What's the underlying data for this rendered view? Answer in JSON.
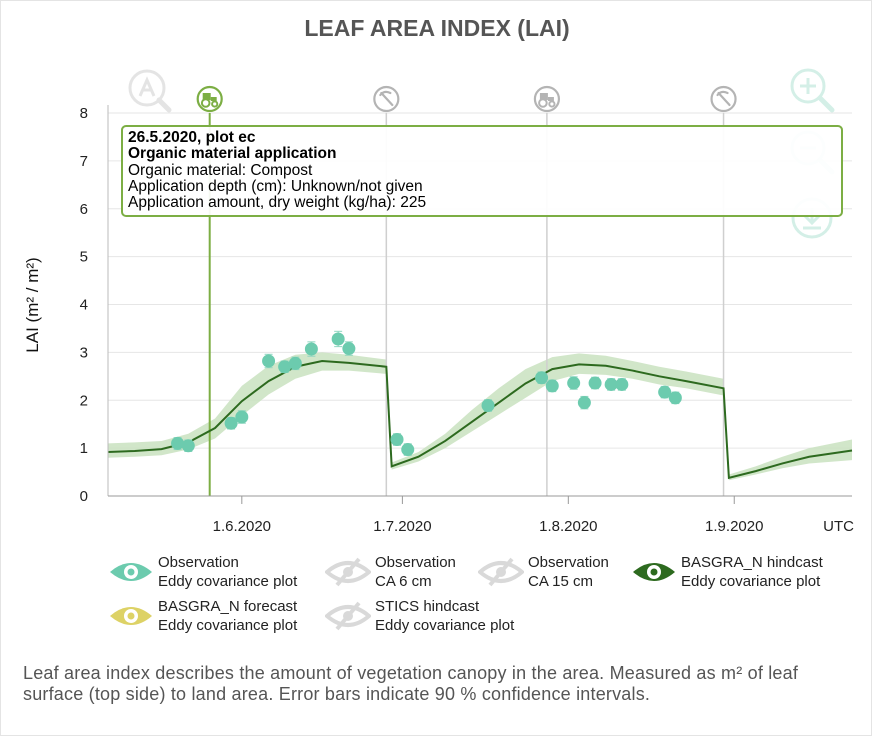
{
  "chart_data": {
    "type": "line",
    "title": "LEAF AREA INDEX (LAI)",
    "ylabel": "LAI (m² / m²)",
    "xlabel": "",
    "ylim": [
      0,
      8
    ],
    "yticks": [
      "0",
      "1",
      "2",
      "3",
      "4",
      "5",
      "6",
      "7",
      "8"
    ],
    "xlim": [
      "2020-05-07",
      "2020-09-23"
    ],
    "xticks": [
      {
        "date": "2020-06-01",
        "label": "1.6.2020"
      },
      {
        "date": "2020-07-01",
        "label": "1.7.2020"
      },
      {
        "date": "2020-08-01",
        "label": "1.8.2020"
      },
      {
        "date": "2020-09-01",
        "label": "1.9.2020"
      }
    ],
    "timezone_label": "UTC",
    "events": [
      {
        "date": "2020-05-26",
        "icon": "tractor-icon",
        "highlighted": true
      },
      {
        "date": "2020-06-28",
        "icon": "mowing-icon",
        "highlighted": false
      },
      {
        "date": "2020-07-28",
        "icon": "tractor-icon",
        "highlighted": false
      },
      {
        "date": "2020-08-30",
        "icon": "mowing-icon",
        "highlighted": false
      }
    ],
    "series": [
      {
        "name": "Observation Eddy covariance plot",
        "kind": "observation",
        "color": "#6ccbae",
        "points": [
          {
            "x": "2020-05-20",
            "y": 1.1,
            "lo": 0.97,
            "hi": 1.22
          },
          {
            "x": "2020-05-22",
            "y": 1.05,
            "lo": 0.93,
            "hi": 1.17
          },
          {
            "x": "2020-05-30",
            "y": 1.52,
            "lo": 1.4,
            "hi": 1.64
          },
          {
            "x": "2020-06-01",
            "y": 1.65,
            "lo": 1.52,
            "hi": 1.78
          },
          {
            "x": "2020-06-06",
            "y": 2.82,
            "lo": 2.68,
            "hi": 2.96
          },
          {
            "x": "2020-06-09",
            "y": 2.7,
            "lo": 2.58,
            "hi": 2.82
          },
          {
            "x": "2020-06-11",
            "y": 2.77,
            "lo": 2.64,
            "hi": 2.9
          },
          {
            "x": "2020-06-14",
            "y": 3.07,
            "lo": 2.92,
            "hi": 3.22
          },
          {
            "x": "2020-06-19",
            "y": 3.28,
            "lo": 3.12,
            "hi": 3.44
          },
          {
            "x": "2020-06-21",
            "y": 3.08,
            "lo": 2.94,
            "hi": 3.22
          },
          {
            "x": "2020-06-30",
            "y": 1.18,
            "lo": 1.06,
            "hi": 1.3
          },
          {
            "x": "2020-07-02",
            "y": 0.97,
            "lo": 0.85,
            "hi": 1.09
          },
          {
            "x": "2020-07-17",
            "y": 1.89,
            "lo": 1.77,
            "hi": 2.01
          },
          {
            "x": "2020-07-27",
            "y": 2.47,
            "lo": 2.35,
            "hi": 2.59
          },
          {
            "x": "2020-07-29",
            "y": 2.3,
            "lo": 2.18,
            "hi": 2.42
          },
          {
            "x": "2020-08-02",
            "y": 2.36,
            "lo": 2.23,
            "hi": 2.49
          },
          {
            "x": "2020-08-04",
            "y": 1.95,
            "lo": 1.82,
            "hi": 2.08
          },
          {
            "x": "2020-08-06",
            "y": 2.36,
            "lo": 2.24,
            "hi": 2.48
          },
          {
            "x": "2020-08-09",
            "y": 2.33,
            "lo": 2.21,
            "hi": 2.45
          },
          {
            "x": "2020-08-11",
            "y": 2.33,
            "lo": 2.21,
            "hi": 2.45
          },
          {
            "x": "2020-08-19",
            "y": 2.17,
            "lo": 2.05,
            "hi": 2.29
          },
          {
            "x": "2020-08-21",
            "y": 2.05,
            "lo": 1.93,
            "hi": 2.17
          }
        ]
      },
      {
        "name": "BASGRA_N hindcast Eddy covariance plot",
        "kind": "model",
        "color": "#2d6a1f",
        "band_color": "#c9e2bf",
        "points": [
          {
            "x": "2020-05-07",
            "y": 0.92,
            "lo": 0.8,
            "hi": 1.1
          },
          {
            "x": "2020-05-12",
            "y": 0.94,
            "lo": 0.82,
            "hi": 1.12
          },
          {
            "x": "2020-05-17",
            "y": 0.98,
            "lo": 0.85,
            "hi": 1.15
          },
          {
            "x": "2020-05-22",
            "y": 1.12,
            "lo": 0.97,
            "hi": 1.3
          },
          {
            "x": "2020-05-27",
            "y": 1.42,
            "lo": 1.2,
            "hi": 1.62
          },
          {
            "x": "2020-06-01",
            "y": 1.98,
            "lo": 1.68,
            "hi": 2.3
          },
          {
            "x": "2020-06-06",
            "y": 2.4,
            "lo": 2.12,
            "hi": 2.72
          },
          {
            "x": "2020-06-11",
            "y": 2.7,
            "lo": 2.45,
            "hi": 2.95
          },
          {
            "x": "2020-06-16",
            "y": 2.82,
            "lo": 2.62,
            "hi": 3.0
          },
          {
            "x": "2020-06-21",
            "y": 2.78,
            "lo": 2.62,
            "hi": 2.95
          },
          {
            "x": "2020-06-28",
            "y": 2.7,
            "lo": 2.55,
            "hi": 2.85
          },
          {
            "x": "2020-06-29",
            "y": 0.62,
            "lo": 0.55,
            "hi": 0.7
          },
          {
            "x": "2020-07-04",
            "y": 0.82,
            "lo": 0.72,
            "hi": 0.92
          },
          {
            "x": "2020-07-09",
            "y": 1.15,
            "lo": 1.0,
            "hi": 1.3
          },
          {
            "x": "2020-07-14",
            "y": 1.55,
            "lo": 1.35,
            "hi": 1.8
          },
          {
            "x": "2020-07-19",
            "y": 1.95,
            "lo": 1.7,
            "hi": 2.25
          },
          {
            "x": "2020-07-24",
            "y": 2.35,
            "lo": 2.05,
            "hi": 2.65
          },
          {
            "x": "2020-07-29",
            "y": 2.65,
            "lo": 2.4,
            "hi": 2.9
          },
          {
            "x": "2020-08-03",
            "y": 2.75,
            "lo": 2.55,
            "hi": 2.98
          },
          {
            "x": "2020-08-08",
            "y": 2.72,
            "lo": 2.53,
            "hi": 2.93
          },
          {
            "x": "2020-08-13",
            "y": 2.62,
            "lo": 2.45,
            "hi": 2.82
          },
          {
            "x": "2020-08-18",
            "y": 2.5,
            "lo": 2.33,
            "hi": 2.7
          },
          {
            "x": "2020-08-23",
            "y": 2.4,
            "lo": 2.25,
            "hi": 2.6
          },
          {
            "x": "2020-08-30",
            "y": 2.25,
            "lo": 2.1,
            "hi": 2.45
          },
          {
            "x": "2020-08-31",
            "y": 0.38,
            "lo": 0.33,
            "hi": 0.45
          },
          {
            "x": "2020-09-05",
            "y": 0.52,
            "lo": 0.45,
            "hi": 0.62
          },
          {
            "x": "2020-09-10",
            "y": 0.68,
            "lo": 0.58,
            "hi": 0.82
          },
          {
            "x": "2020-09-15",
            "y": 0.82,
            "lo": 0.68,
            "hi": 1.0
          },
          {
            "x": "2020-09-23",
            "y": 0.95,
            "lo": 0.75,
            "hi": 1.18
          }
        ]
      }
    ]
  },
  "tooltip": {
    "heading": "26.5.2020, plot ec",
    "event": "Organic material application",
    "lines": [
      "Organic material: Compost",
      "Application depth (cm): Unknown/not given",
      "Application amount, dry weight (kg/ha): 225"
    ]
  },
  "legend": [
    {
      "line1": "Observation",
      "line2": "Eddy covariance plot",
      "icon": "eye-open-icon",
      "color": "#6ccbae",
      "visible": true
    },
    {
      "line1": "Observation",
      "line2": "CA 6 cm",
      "icon": "eye-closed-icon",
      "color": "#d9d9d9",
      "visible": false
    },
    {
      "line1": "Observation",
      "line2": "CA 15 cm",
      "icon": "eye-closed-icon",
      "color": "#d9d9d9",
      "visible": false
    },
    {
      "line1": "BASGRA_N hindcast",
      "line2": "Eddy covariance plot",
      "icon": "eye-open-icon",
      "color": "#2d6a1f",
      "visible": true
    },
    {
      "line1": "BASGRA_N forecast",
      "line2": "Eddy covariance plot",
      "icon": "eye-open-icon",
      "color": "#ddd266",
      "visible": true
    },
    {
      "line1": "STICS hindcast",
      "line2": "Eddy covariance plot",
      "icon": "eye-closed-icon",
      "color": "#d9d9d9",
      "visible": false
    }
  ],
  "toolbar": {
    "reset_icon": "reset-zoom-icon",
    "zoom_in_icon": "zoom-in-icon",
    "zoom_out_icon": "zoom-out-icon",
    "download_icon": "download-icon"
  },
  "description": "Leaf area index describes the amount of vegetation canopy in the area. Measured as m² of leaf surface (top side) to land area. Error bars indicate 90 % confidence intervals."
}
